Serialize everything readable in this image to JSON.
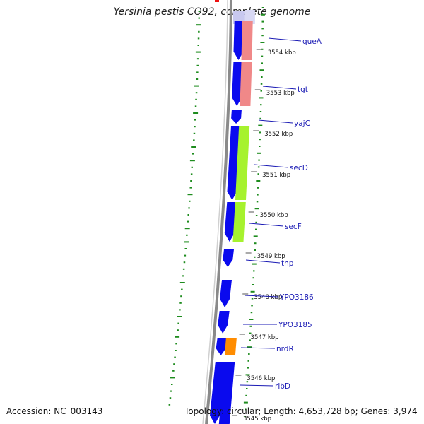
{
  "title": "Yersinia pestis CO92, complete genome",
  "footer": {
    "accession": "Accession: NC_003143",
    "topology": "Topology: circular; Length: 4,653,728 bp; Genes: 3,974"
  },
  "colors": {
    "forward_cds": "#0a0aee",
    "backbone": "#8a8a8a",
    "gc_dots": "#1e8c1e",
    "label": "#1a1ab4"
  },
  "genes": [
    {
      "name": "queA",
      "cog_color": "#f08888"
    },
    {
      "name": "tgt",
      "cog_color": "#f08888"
    },
    {
      "name": "yajC",
      "cog_color": "#a6f22e"
    },
    {
      "name": "secD",
      "cog_color": "#a6f22e"
    },
    {
      "name": "secF",
      "cog_color": "#a6f22e"
    },
    {
      "name": "tnp",
      "cog_color": null
    },
    {
      "name": "YPO3186",
      "cog_color": null
    },
    {
      "name": "YPO3185",
      "cog_color": null
    },
    {
      "name": "nrdR",
      "cog_color": "#ff8c00"
    },
    {
      "name": "ribD",
      "cog_color": "#0a0aee"
    }
  ],
  "ticks": [
    "3554 kbp",
    "3553 kbp",
    "3552 kbp",
    "3551 kbp",
    "3550 kbp",
    "3549 kbp",
    "3548 kbp",
    "3547 kbp",
    "3546 kbp",
    "3545 kbp"
  ]
}
